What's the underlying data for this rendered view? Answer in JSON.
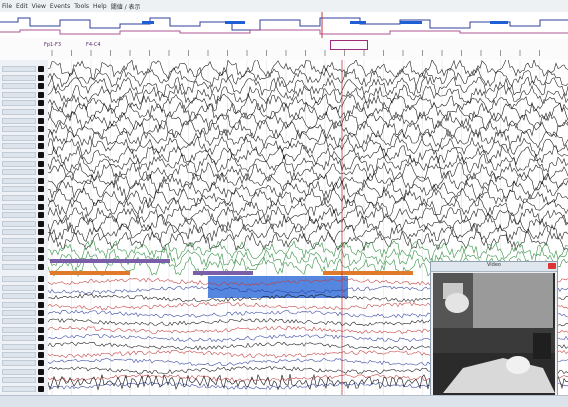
{
  "menubar": {
    "items": [
      "File",
      "Edit",
      "View",
      "Events",
      "Tools",
      "Help",
      "閾値 / 表示"
    ]
  },
  "timeline": {
    "left_label": "Fp1-F3",
    "right_label": "F4-C4",
    "tick_count": 26
  },
  "channels": {
    "eeg_count": 24,
    "poly_count": 14
  },
  "video": {
    "title": "Video"
  },
  "colors": {
    "accent_blue": "#2e3f9c",
    "accent_purple": "#9b2c7a",
    "trace_black": "#121212",
    "trace_green": "#2a8a3a",
    "trace_red": "#c23a3a",
    "event_orange": "#e0792a",
    "event_purple": "#7a5fa8",
    "event_blue": "#1e5fd6"
  }
}
